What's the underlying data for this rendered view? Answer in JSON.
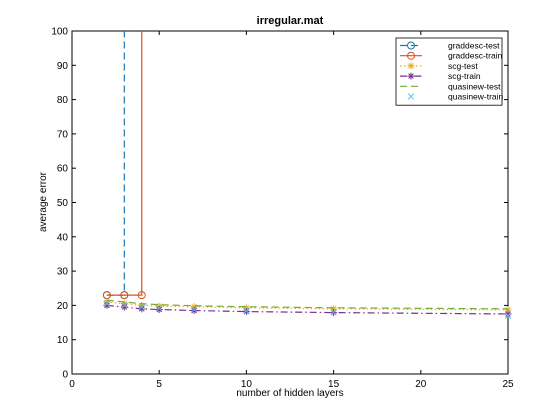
{
  "chart_data": {
    "type": "line",
    "title": "irregular.mat",
    "xlabel": "number of hidden layers",
    "ylabel": "average error",
    "xlim": [
      0,
      25
    ],
    "ylim": [
      0,
      100
    ],
    "xticks": [
      0,
      5,
      10,
      15,
      20,
      25
    ],
    "yticks": [
      0,
      10,
      20,
      30,
      40,
      50,
      60,
      70,
      80,
      90,
      100
    ],
    "grid": false,
    "legend_position": "top-right",
    "series": [
      {
        "name": "graddesc-test",
        "color": "#1f77b4",
        "line": "dashed",
        "marker": "circle",
        "x": [
          2,
          3,
          3
        ],
        "y": [
          23,
          23,
          100
        ]
      },
      {
        "name": "graddesc-train",
        "color": "#d95319",
        "line": "solid",
        "marker": "circle",
        "x": [
          2,
          3,
          4,
          4
        ],
        "y": [
          23,
          23,
          23,
          100
        ]
      },
      {
        "name": "scg-test",
        "color": "#edb120",
        "line": "dotted",
        "marker": "asterisk",
        "x": [
          2,
          3,
          4,
          5,
          7,
          10,
          15,
          25
        ],
        "y": [
          21,
          20.5,
          20,
          19.8,
          19.6,
          19.3,
          19.0,
          18.7
        ]
      },
      {
        "name": "scg-train",
        "color": "#7e2f8e",
        "line": "dashdot",
        "marker": "asterisk",
        "x": [
          2,
          3,
          4,
          5,
          7,
          10,
          15,
          25
        ],
        "y": [
          20,
          19.5,
          19,
          18.8,
          18.5,
          18.2,
          17.9,
          17.5
        ]
      },
      {
        "name": "quasinew-test",
        "color": "#77ac30",
        "line": "dashed",
        "marker": "none",
        "x": [
          2,
          3,
          4,
          5,
          7,
          10,
          15,
          25
        ],
        "y": [
          21.5,
          21,
          20.5,
          20.2,
          19.9,
          19.6,
          19.3,
          19
        ]
      },
      {
        "name": "quasinew-train",
        "color": "#4dbeee",
        "line": "none",
        "marker": "x",
        "x": [
          2,
          3,
          4,
          5,
          7,
          10,
          15,
          25
        ],
        "y": [
          20.5,
          20,
          19.5,
          19.2,
          18.8,
          18.4,
          18,
          17
        ]
      }
    ]
  }
}
